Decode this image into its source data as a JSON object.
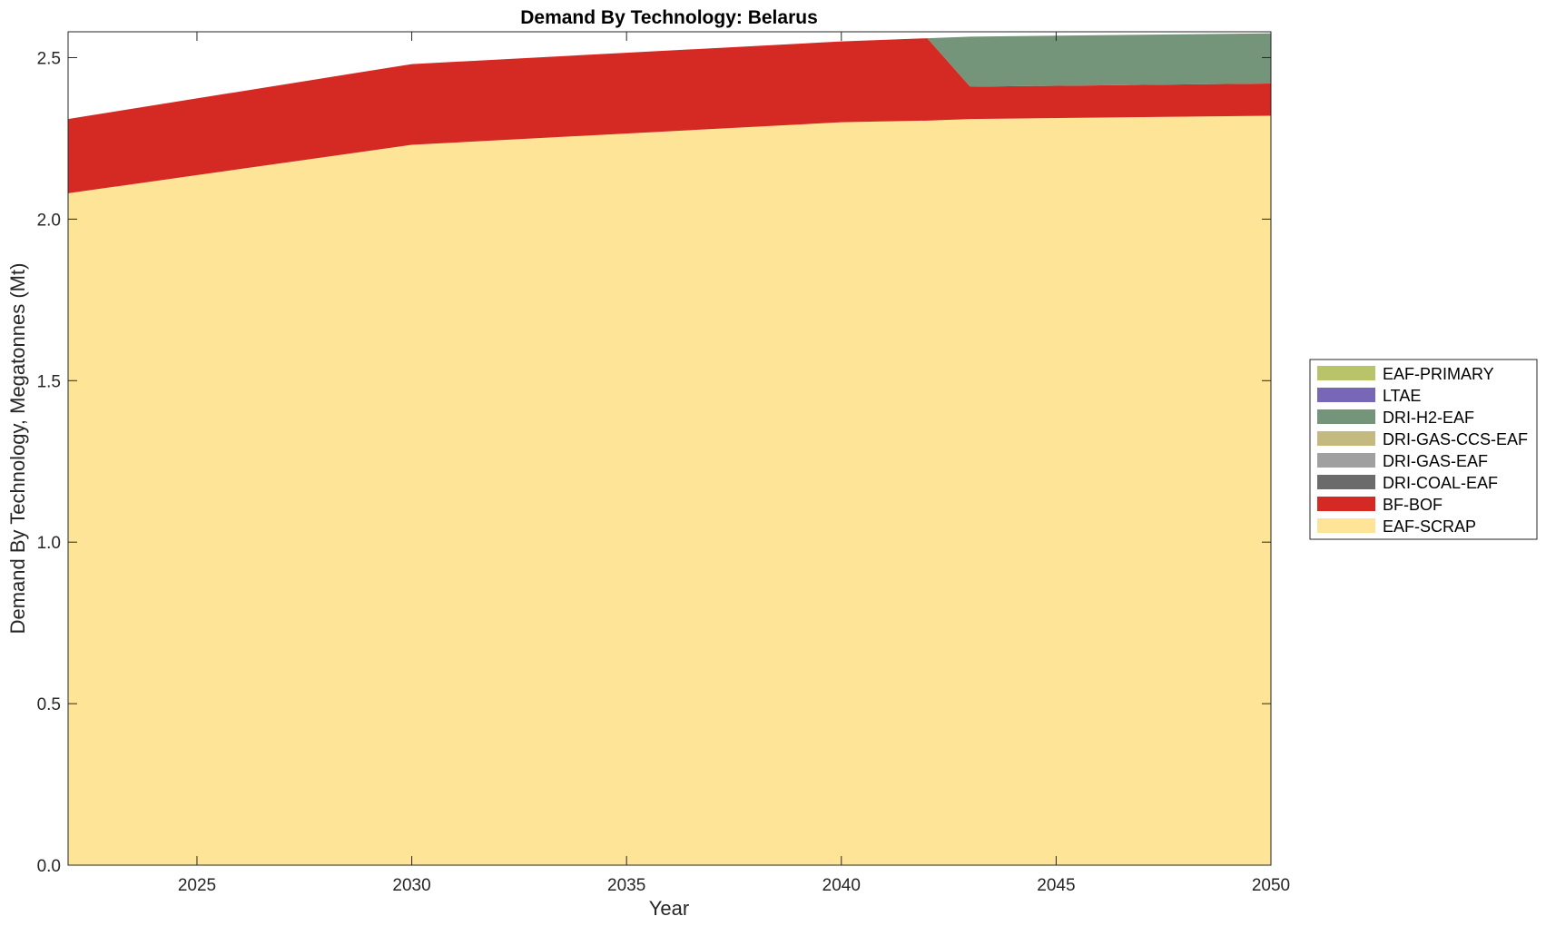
{
  "chart_data": {
    "type": "area",
    "stacked": true,
    "title": "Demand By Technology: Belarus",
    "xlabel": "Year",
    "ylabel": "Demand By Technology, Megatonnes (Mt)",
    "xlim": [
      2022,
      2050
    ],
    "ylim": [
      0,
      2.58
    ],
    "xticks": [
      2025,
      2030,
      2035,
      2040,
      2045,
      2050
    ],
    "yticks": [
      "0.0",
      "0.5",
      "1.0",
      "1.5",
      "2.0",
      "2.5"
    ],
    "grid": false,
    "legend_position": "right",
    "x": [
      2022,
      2030,
      2040,
      2042,
      2043,
      2050
    ],
    "series": [
      {
        "name": "EAF-SCRAP",
        "color": "#FDE496",
        "values": [
          2.08,
          2.23,
          2.3,
          2.305,
          2.31,
          2.32
        ]
      },
      {
        "name": "BF-BOF",
        "color": "#D42A23",
        "values": [
          0.23,
          0.25,
          0.25,
          0.255,
          0.1,
          0.1
        ]
      },
      {
        "name": "DRI-COAL-EAF",
        "color": "#6B6B6B",
        "values": [
          0,
          0,
          0,
          0,
          0,
          0
        ]
      },
      {
        "name": "DRI-GAS-EAF",
        "color": "#A0A0A0",
        "values": [
          0,
          0,
          0,
          0,
          0,
          0
        ]
      },
      {
        "name": "DRI-GAS-CCS-EAF",
        "color": "#C4BA80",
        "values": [
          0,
          0,
          0,
          0,
          0,
          0
        ]
      },
      {
        "name": "DRI-H2-EAF",
        "color": "#75957A",
        "values": [
          0,
          0,
          0,
          0,
          0.155,
          0.155
        ]
      },
      {
        "name": "LTAE",
        "color": "#7867B6",
        "values": [
          0,
          0,
          0,
          0,
          0,
          0
        ]
      },
      {
        "name": "EAF-PRIMARY",
        "color": "#B9C46A",
        "values": [
          0,
          0,
          0,
          0,
          0,
          0
        ]
      }
    ]
  }
}
